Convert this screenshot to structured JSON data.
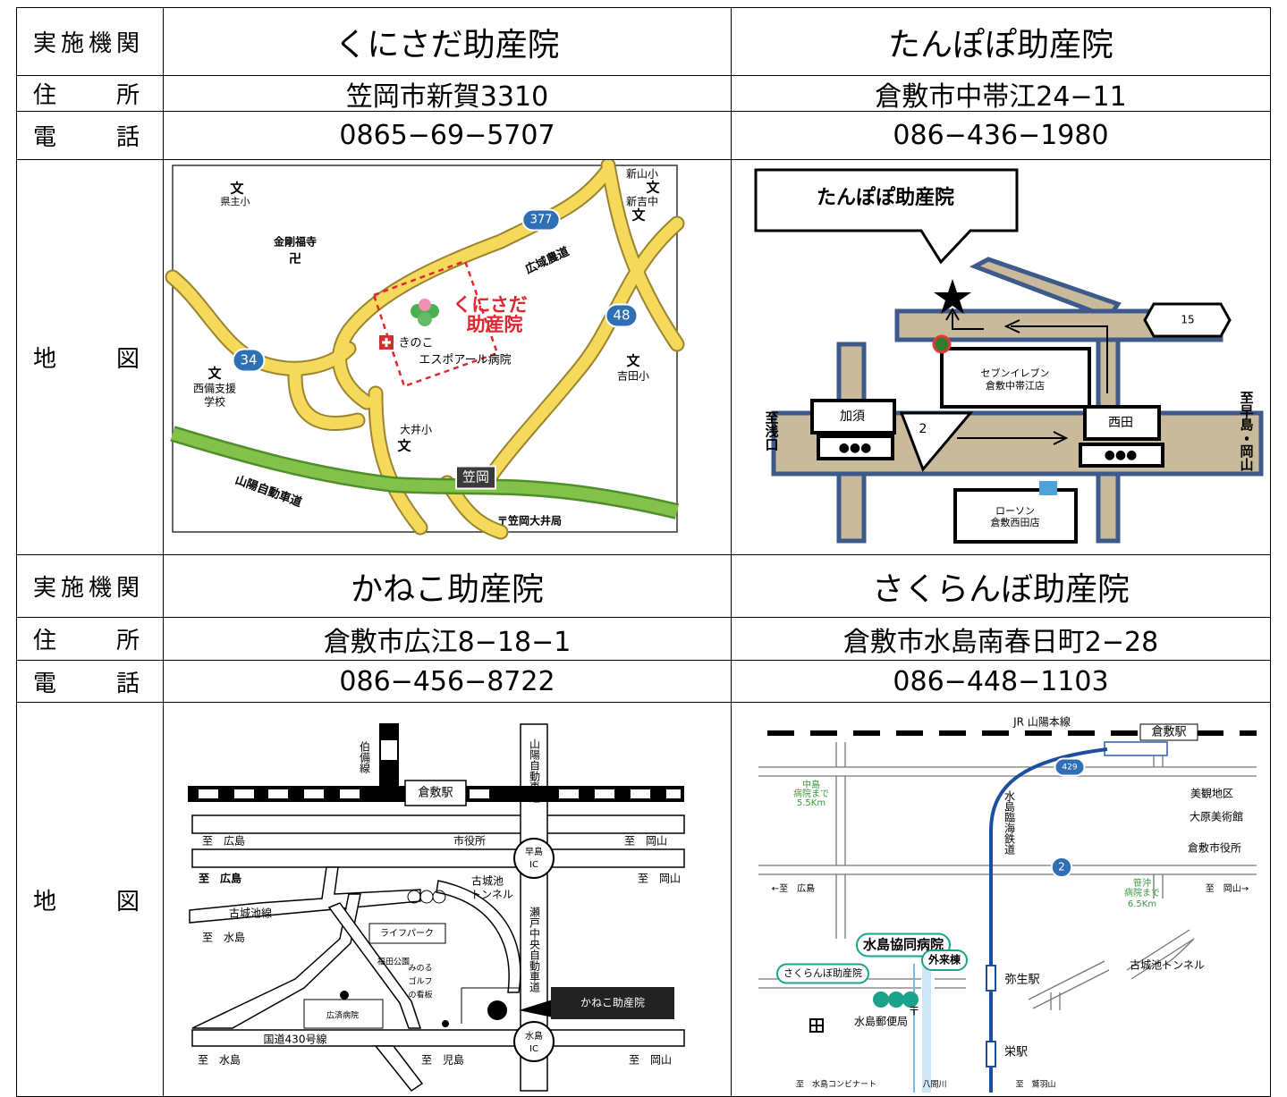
{
  "table": {
    "blocks": [
      {
        "labels": [
          "実施機関",
          "住　所",
          "電　話",
          "地　図"
        ],
        "clinics": [
          {
            "name": "くにさだ助産院",
            "address": "笠岡市新賀3310",
            "phone": "0865−69−5707"
          },
          {
            "name": "たんぽぽ助産院",
            "address": "倉敷市中帯江24−11",
            "phone": "086−436−1980"
          }
        ]
      },
      {
        "labels": [
          "実施機関",
          "住　所",
          "電　話",
          "地　図"
        ],
        "clinics": [
          {
            "name": "かねこ助産院",
            "address": "倉敷市広江8−18−1",
            "phone": "086−456−8722"
          },
          {
            "name": "さくらんぼ助産院",
            "address": "倉敷市水島南春日町2−28",
            "phone": "086−448−1103"
          }
        ]
      }
    ]
  },
  "maps": [
    {
      "labels": [
        "文",
        "県主小",
        "金剛福寺",
        "卍",
        "377",
        "広域農道",
        "くにさだ",
        "助産院",
        "48",
        "34",
        "きのこ",
        "エスポアール病院",
        "文",
        "西備支援",
        "学校",
        "新山小",
        "文",
        "新吉中",
        "文",
        "文",
        "吉田小",
        "大井小",
        "文",
        "山陽自動車道",
        "笠岡",
        "〒笠岡大井局"
      ]
    },
    {
      "labels": [
        "たんぽぽ助産院",
        "15",
        "セブンイレブン",
        "倉敷中帯江店",
        "加須",
        "●●●",
        "2",
        "西田",
        "●●●",
        "ローソン",
        "倉敷西田店",
        "至浅口",
        "至早島・岡山"
      ]
    },
    {
      "labels": [
        "伯備線",
        "倉敷駅",
        "山陽自動車道",
        "至　広島",
        "市役所",
        "早島",
        "IC",
        "至　岡山",
        "至　広島",
        "至　岡山",
        "古城池",
        "トンネル",
        "瀬戸中央自動車道",
        "古城池線",
        "至　水島",
        "ライフパーク",
        "福田公園",
        "広済病院",
        "みのる",
        "ゴルフ",
        "の看板",
        "かねこ助産院",
        "水島",
        "IC",
        "国道430号線",
        "至　水島",
        "至　児島",
        "至　岡山"
      ]
    },
    {
      "labels": [
        "JR 山陽本線",
        "倉敷駅",
        "429",
        "中島",
        "病院まで",
        "5.5Km",
        "水島臨海鉄道",
        "美観地区",
        "大原美術館",
        "倉敷市役所",
        "2",
        "←至　広島",
        "笹沖",
        "病院まで",
        "6.5Km",
        "至　岡山→",
        "水島協同病院",
        "外来棟",
        "さくらんぼ助産院",
        "弥生駅",
        "古城池トンネル",
        "水島郵便局",
        "栄駅",
        "至　水島コンビナート",
        "八間川",
        "至　鷲羽山",
        "〒"
      ]
    }
  ]
}
